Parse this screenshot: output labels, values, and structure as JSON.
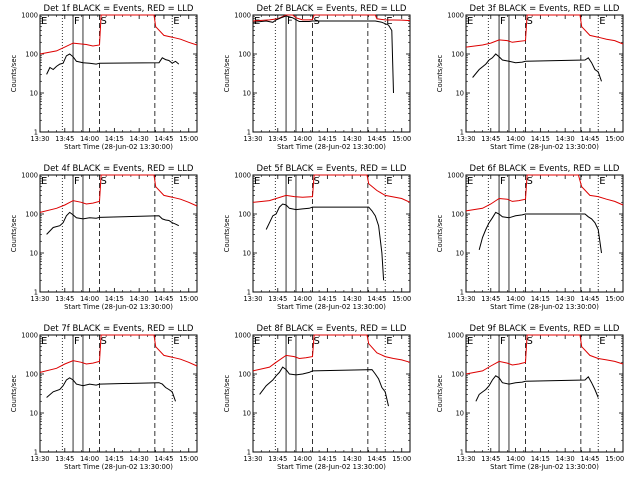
{
  "colors": {
    "events": "#000000",
    "lld": "#dd0000",
    "background": "#ffffff"
  },
  "panel_titles": [
    "Det 1f BLACK = Events, RED = LLD",
    "Det 2f BLACK = Events, RED = LLD",
    "Det 3f BLACK = Events, RED = LLD",
    "Det 4f BLACK = Events, RED = LLD",
    "Det 5f BLACK = Events, RED = LLD",
    "Det 6f BLACK = Events, RED = LLD",
    "Det 7f BLACK = Events, RED = LLD",
    "Det 8f BLACK = Events, RED = LLD",
    "Det 9f BLACK = Events, RED = LLD"
  ],
  "chart_data": {
    "type": "line",
    "layout": "3x3 grid of panels",
    "xlabel": "Start Time (28-Jun-02 13:30:00)",
    "ylabel": "Counts/sec",
    "x_unit": "minutes after 13:30",
    "xlim": [
      0,
      95
    ],
    "ylim": [
      1,
      1000
    ],
    "yscale": "log",
    "x_ticks": [
      0,
      15,
      30,
      45,
      60,
      75,
      90
    ],
    "x_tick_labels": [
      "13:30",
      "13:45",
      "14:00",
      "14:15",
      "14:30",
      "14:45",
      "15:00"
    ],
    "y_ticks": [
      1,
      10,
      100,
      1000
    ],
    "y_tick_labels": [
      "1",
      "10",
      "100",
      "1000"
    ],
    "markers": [
      {
        "label": "E",
        "x": 0,
        "style": "solid"
      },
      {
        "label": "",
        "x": 13.5,
        "style": "dotted"
      },
      {
        "label": "F",
        "x": 20,
        "style": "solid"
      },
      {
        "label": "",
        "x": 26,
        "style": "solid"
      },
      {
        "label": "S",
        "x": 36,
        "style": "dashed"
      },
      {
        "label": "",
        "x": 69.5,
        "style": "dashed"
      },
      {
        "label": "E",
        "x": 80,
        "style": "dotted"
      }
    ],
    "legend": "in titles: BLACK = Events, RED = LLD",
    "series_names": [
      "Events",
      "LLD"
    ],
    "panels": [
      {
        "detector": "1f",
        "lld": [
          [
            0,
            100
          ],
          [
            10,
            120
          ],
          [
            15,
            150
          ],
          [
            20,
            190
          ],
          [
            25,
            180
          ],
          [
            28,
            175
          ],
          [
            32,
            160
          ],
          [
            36,
            170
          ],
          [
            37,
            1000
          ],
          [
            69,
            1000
          ],
          [
            70,
            500
          ],
          [
            75,
            300
          ],
          [
            80,
            270
          ],
          [
            85,
            240
          ],
          [
            90,
            200
          ],
          [
            95,
            170
          ]
        ],
        "events": [
          [
            4,
            30
          ],
          [
            6,
            45
          ],
          [
            8,
            40
          ],
          [
            10,
            48
          ],
          [
            12,
            55
          ],
          [
            14,
            58
          ],
          [
            16,
            90
          ],
          [
            18,
            100
          ],
          [
            20,
            85
          ],
          [
            22,
            65
          ],
          [
            26,
            60
          ],
          [
            30,
            58
          ],
          [
            34,
            55
          ],
          [
            36,
            58
          ],
          [
            72,
            60
          ],
          [
            74,
            80
          ],
          [
            76,
            72
          ],
          [
            78,
            68
          ],
          [
            80,
            58
          ],
          [
            82,
            65
          ],
          [
            84,
            55
          ]
        ]
      },
      {
        "detector": "2f",
        "lld": [
          [
            0,
            700
          ],
          [
            10,
            750
          ],
          [
            15,
            800
          ],
          [
            20,
            1000
          ],
          [
            24,
            1000
          ],
          [
            26,
            850
          ],
          [
            30,
            750
          ],
          [
            34,
            750
          ],
          [
            36,
            760
          ],
          [
            37,
            1000
          ],
          [
            74,
            1000
          ],
          [
            75,
            800
          ],
          [
            80,
            750
          ],
          [
            90,
            740
          ],
          [
            95,
            720
          ]
        ],
        "events": [
          [
            0,
            650
          ],
          [
            8,
            700
          ],
          [
            12,
            650
          ],
          [
            14,
            750
          ],
          [
            17,
            850
          ],
          [
            20,
            950
          ],
          [
            24,
            850
          ],
          [
            28,
            680
          ],
          [
            34,
            680
          ],
          [
            36,
            700
          ],
          [
            74,
            700
          ],
          [
            78,
            650
          ],
          [
            80,
            600
          ],
          [
            82,
            550
          ],
          [
            84,
            400
          ],
          [
            85,
            10
          ]
        ]
      },
      {
        "detector": "3f",
        "lld": [
          [
            0,
            150
          ],
          [
            10,
            170
          ],
          [
            15,
            190
          ],
          [
            20,
            230
          ],
          [
            25,
            220
          ],
          [
            28,
            200
          ],
          [
            32,
            210
          ],
          [
            36,
            220
          ],
          [
            37,
            1000
          ],
          [
            69,
            1000
          ],
          [
            70,
            500
          ],
          [
            75,
            300
          ],
          [
            80,
            270
          ],
          [
            85,
            240
          ],
          [
            90,
            220
          ],
          [
            95,
            180
          ]
        ],
        "events": [
          [
            4,
            25
          ],
          [
            8,
            40
          ],
          [
            12,
            55
          ],
          [
            14,
            70
          ],
          [
            16,
            80
          ],
          [
            18,
            100
          ],
          [
            20,
            85
          ],
          [
            22,
            70
          ],
          [
            26,
            65
          ],
          [
            30,
            60
          ],
          [
            34,
            62
          ],
          [
            36,
            65
          ],
          [
            72,
            70
          ],
          [
            74,
            80
          ],
          [
            76,
            60
          ],
          [
            78,
            40
          ],
          [
            80,
            35
          ],
          [
            82,
            20
          ]
        ]
      },
      {
        "detector": "4f",
        "lld": [
          [
            0,
            110
          ],
          [
            10,
            140
          ],
          [
            15,
            170
          ],
          [
            20,
            220
          ],
          [
            25,
            200
          ],
          [
            28,
            180
          ],
          [
            32,
            190
          ],
          [
            36,
            210
          ],
          [
            37,
            1000
          ],
          [
            69,
            1000
          ],
          [
            70,
            500
          ],
          [
            75,
            300
          ],
          [
            80,
            270
          ],
          [
            85,
            240
          ],
          [
            90,
            200
          ],
          [
            95,
            160
          ]
        ],
        "events": [
          [
            4,
            30
          ],
          [
            8,
            45
          ],
          [
            12,
            50
          ],
          [
            14,
            60
          ],
          [
            16,
            90
          ],
          [
            18,
            110
          ],
          [
            20,
            95
          ],
          [
            22,
            80
          ],
          [
            26,
            75
          ],
          [
            30,
            80
          ],
          [
            34,
            78
          ],
          [
            36,
            82
          ],
          [
            72,
            90
          ],
          [
            74,
            75
          ],
          [
            76,
            70
          ],
          [
            78,
            68
          ],
          [
            80,
            60
          ],
          [
            82,
            55
          ],
          [
            84,
            50
          ]
        ]
      },
      {
        "detector": "5f",
        "lld": [
          [
            0,
            200
          ],
          [
            10,
            220
          ],
          [
            14,
            250
          ],
          [
            20,
            300
          ],
          [
            25,
            280
          ],
          [
            30,
            270
          ],
          [
            36,
            280
          ],
          [
            37,
            1000
          ],
          [
            69,
            1000
          ],
          [
            70,
            600
          ],
          [
            75,
            400
          ],
          [
            80,
            300
          ],
          [
            90,
            250
          ],
          [
            95,
            200
          ]
        ],
        "events": [
          [
            8,
            40
          ],
          [
            10,
            60
          ],
          [
            12,
            90
          ],
          [
            14,
            100
          ],
          [
            16,
            150
          ],
          [
            18,
            180
          ],
          [
            20,
            170
          ],
          [
            22,
            140
          ],
          [
            26,
            130
          ],
          [
            30,
            135
          ],
          [
            34,
            140
          ],
          [
            36,
            150
          ],
          [
            70,
            150
          ],
          [
            72,
            120
          ],
          [
            74,
            90
          ],
          [
            76,
            50
          ],
          [
            78,
            10
          ],
          [
            79,
            2
          ]
        ]
      },
      {
        "detector": "6f",
        "lld": [
          [
            0,
            120
          ],
          [
            10,
            140
          ],
          [
            15,
            180
          ],
          [
            20,
            250
          ],
          [
            25,
            240
          ],
          [
            28,
            210
          ],
          [
            32,
            220
          ],
          [
            36,
            240
          ],
          [
            37,
            1000
          ],
          [
            68,
            1000
          ],
          [
            70,
            500
          ],
          [
            75,
            300
          ],
          [
            80,
            280
          ],
          [
            85,
            240
          ],
          [
            90,
            210
          ],
          [
            95,
            170
          ]
        ],
        "events": [
          [
            8,
            12
          ],
          [
            10,
            25
          ],
          [
            12,
            40
          ],
          [
            14,
            60
          ],
          [
            16,
            80
          ],
          [
            18,
            110
          ],
          [
            20,
            100
          ],
          [
            22,
            85
          ],
          [
            26,
            80
          ],
          [
            30,
            90
          ],
          [
            34,
            95
          ],
          [
            36,
            100
          ],
          [
            72,
            100
          ],
          [
            74,
            85
          ],
          [
            76,
            75
          ],
          [
            78,
            60
          ],
          [
            80,
            40
          ],
          [
            82,
            10
          ]
        ]
      },
      {
        "detector": "7f",
        "lld": [
          [
            0,
            110
          ],
          [
            10,
            140
          ],
          [
            15,
            180
          ],
          [
            20,
            220
          ],
          [
            25,
            200
          ],
          [
            28,
            180
          ],
          [
            32,
            190
          ],
          [
            36,
            210
          ],
          [
            37,
            1000
          ],
          [
            69,
            1000
          ],
          [
            70,
            500
          ],
          [
            75,
            300
          ],
          [
            80,
            270
          ],
          [
            85,
            240
          ],
          [
            90,
            200
          ],
          [
            95,
            160
          ]
        ],
        "events": [
          [
            4,
            25
          ],
          [
            8,
            35
          ],
          [
            12,
            40
          ],
          [
            14,
            50
          ],
          [
            16,
            70
          ],
          [
            18,
            80
          ],
          [
            20,
            70
          ],
          [
            22,
            55
          ],
          [
            26,
            50
          ],
          [
            30,
            55
          ],
          [
            34,
            52
          ],
          [
            36,
            55
          ],
          [
            72,
            60
          ],
          [
            74,
            55
          ],
          [
            76,
            45
          ],
          [
            78,
            40
          ],
          [
            80,
            35
          ],
          [
            82,
            20
          ]
        ]
      },
      {
        "detector": "8f",
        "lld": [
          [
            0,
            120
          ],
          [
            10,
            150
          ],
          [
            14,
            200
          ],
          [
            20,
            300
          ],
          [
            25,
            280
          ],
          [
            28,
            250
          ],
          [
            32,
            260
          ],
          [
            36,
            280
          ],
          [
            37,
            1000
          ],
          [
            69,
            1000
          ],
          [
            70,
            600
          ],
          [
            75,
            350
          ],
          [
            80,
            280
          ],
          [
            85,
            250
          ],
          [
            90,
            230
          ],
          [
            95,
            200
          ]
        ],
        "events": [
          [
            4,
            30
          ],
          [
            8,
            50
          ],
          [
            12,
            70
          ],
          [
            14,
            90
          ],
          [
            16,
            110
          ],
          [
            18,
            150
          ],
          [
            20,
            130
          ],
          [
            22,
            100
          ],
          [
            26,
            95
          ],
          [
            30,
            100
          ],
          [
            34,
            110
          ],
          [
            36,
            120
          ],
          [
            72,
            130
          ],
          [
            74,
            100
          ],
          [
            76,
            75
          ],
          [
            78,
            45
          ],
          [
            80,
            35
          ],
          [
            82,
            15
          ]
        ]
      },
      {
        "detector": "9f",
        "lld": [
          [
            0,
            100
          ],
          [
            10,
            120
          ],
          [
            15,
            160
          ],
          [
            20,
            210
          ],
          [
            25,
            190
          ],
          [
            28,
            170
          ],
          [
            32,
            180
          ],
          [
            36,
            200
          ],
          [
            37,
            1000
          ],
          [
            69,
            1000
          ],
          [
            70,
            500
          ],
          [
            75,
            300
          ],
          [
            80,
            250
          ],
          [
            85,
            230
          ],
          [
            90,
            210
          ],
          [
            95,
            180
          ]
        ],
        "events": [
          [
            6,
            20
          ],
          [
            8,
            30
          ],
          [
            12,
            40
          ],
          [
            14,
            50
          ],
          [
            16,
            70
          ],
          [
            18,
            90
          ],
          [
            20,
            80
          ],
          [
            22,
            60
          ],
          [
            26,
            55
          ],
          [
            30,
            60
          ],
          [
            34,
            62
          ],
          [
            36,
            65
          ],
          [
            72,
            70
          ],
          [
            74,
            85
          ],
          [
            76,
            60
          ],
          [
            78,
            40
          ],
          [
            80,
            25
          ]
        ]
      }
    ]
  }
}
